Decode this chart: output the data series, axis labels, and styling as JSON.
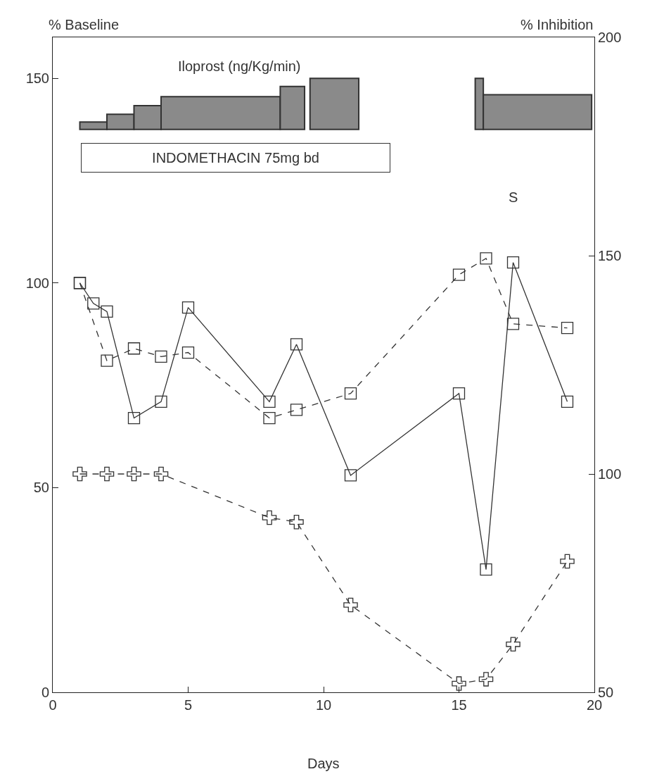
{
  "chart_data": {
    "type": "line",
    "xlabel": "Days",
    "ylabel": "% Baseline",
    "y2label": "% Inhibition",
    "annotations": [
      "Iloprost (ng/Kg/min)",
      "INDOMETHACIN 75mg bd",
      "S"
    ],
    "xlim": [
      0,
      20
    ],
    "xticks": [
      0,
      5,
      10,
      15,
      20
    ],
    "ylim": [
      0,
      160
    ],
    "yticks": [
      0,
      50,
      100,
      150
    ],
    "y2lim": [
      50,
      200
    ],
    "y2ticks": [
      50,
      100,
      150,
      200
    ],
    "grid": false,
    "series": [
      {
        "color": "#333333",
        "marker": "square",
        "line_style": "solid",
        "x": [
          1,
          1.5,
          2,
          3,
          4,
          5,
          8,
          9,
          11,
          15,
          16,
          17,
          19
        ],
        "values": [
          100,
          95,
          93,
          67,
          71,
          94,
          71,
          85,
          53,
          73,
          30,
          105,
          71
        ]
      },
      {
        "color": "#333333",
        "marker": "square",
        "line_style": "dashed",
        "x": [
          1,
          2,
          3,
          4,
          5,
          8,
          9,
          11,
          15,
          16,
          17,
          19
        ],
        "values": [
          100,
          81,
          84,
          82,
          83,
          67,
          69,
          73,
          102,
          106,
          90,
          89
        ]
      },
      {
        "color": "#333333",
        "marker": "cross",
        "line_style": "dashed",
        "axis": "y2",
        "x": [
          1,
          2,
          3,
          4,
          8,
          9,
          11,
          15,
          16,
          17,
          19
        ],
        "values": [
          100,
          100,
          100,
          100,
          90,
          89,
          70,
          52,
          53,
          61,
          80
        ]
      }
    ]
  }
}
